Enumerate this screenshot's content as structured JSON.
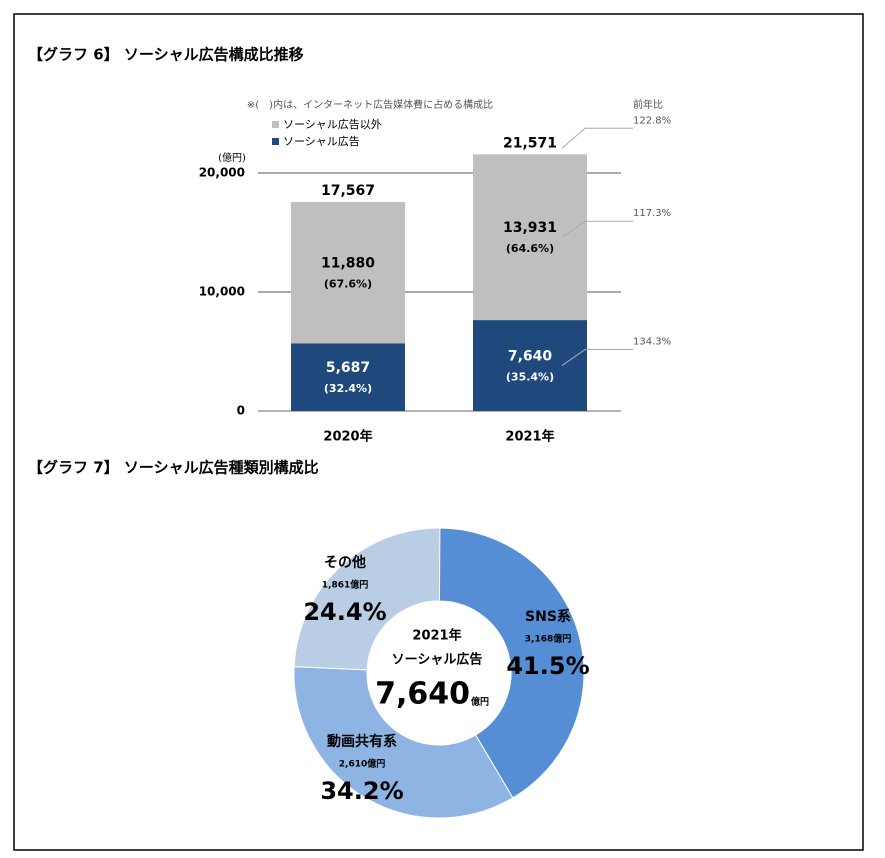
{
  "chart_data": [
    {
      "type": "stacked-bar",
      "title": "【グラフ 6】 ソーシャル広告構成比推移",
      "note": "※(　)内は、インターネット広告媒体費に占める構成比",
      "y_unit": "(億円)",
      "growth_header": "前年比",
      "categories": [
        "2020年",
        "2021年"
      ],
      "series": [
        {
          "name": "ソーシャル広告",
          "color": "#1f497d",
          "values": [
            5687,
            7640
          ],
          "value_labels": [
            "5,687",
            "7,640"
          ],
          "share_labels": [
            "(32.4%)",
            "(35.4%)"
          ],
          "growth_label": "134.3%"
        },
        {
          "name": "ソーシャル広告以外",
          "color": "#bfbfbf",
          "values": [
            11880,
            13931
          ],
          "value_labels": [
            "11,880",
            "13,931"
          ],
          "share_labels": [
            "(67.6%)",
            "(64.6%)"
          ],
          "growth_label": "117.3%"
        }
      ],
      "totals": {
        "values": [
          17567,
          21571
        ],
        "value_labels": [
          "17,567",
          "21,571"
        ],
        "growth_label": "122.8%"
      },
      "ylim": [
        0,
        22000
      ],
      "yticks": [
        0,
        {
          "value": 10000,
          "label": "10,000"
        },
        {
          "value": 20000,
          "label": "20,000"
        }
      ],
      "grid": true
    },
    {
      "type": "donut",
      "title": "【グラフ 7】 ソーシャル広告種類別構成比",
      "center": {
        "year": "2021年",
        "label": "ソーシャル広告",
        "total": "7,640",
        "unit": "億円"
      },
      "categories": [
        "SNS系",
        "動画共有系",
        "その他"
      ],
      "values": [
        41.5,
        34.2,
        24.4
      ],
      "value_labels": [
        "41.5%",
        "34.2%",
        "24.4%"
      ],
      "amount_labels": [
        "3,168億円",
        "2,610億円",
        "1,861億円"
      ],
      "colors": [
        "#558ed5",
        "#8eb4e3",
        "#b9cde5"
      ]
    }
  ]
}
